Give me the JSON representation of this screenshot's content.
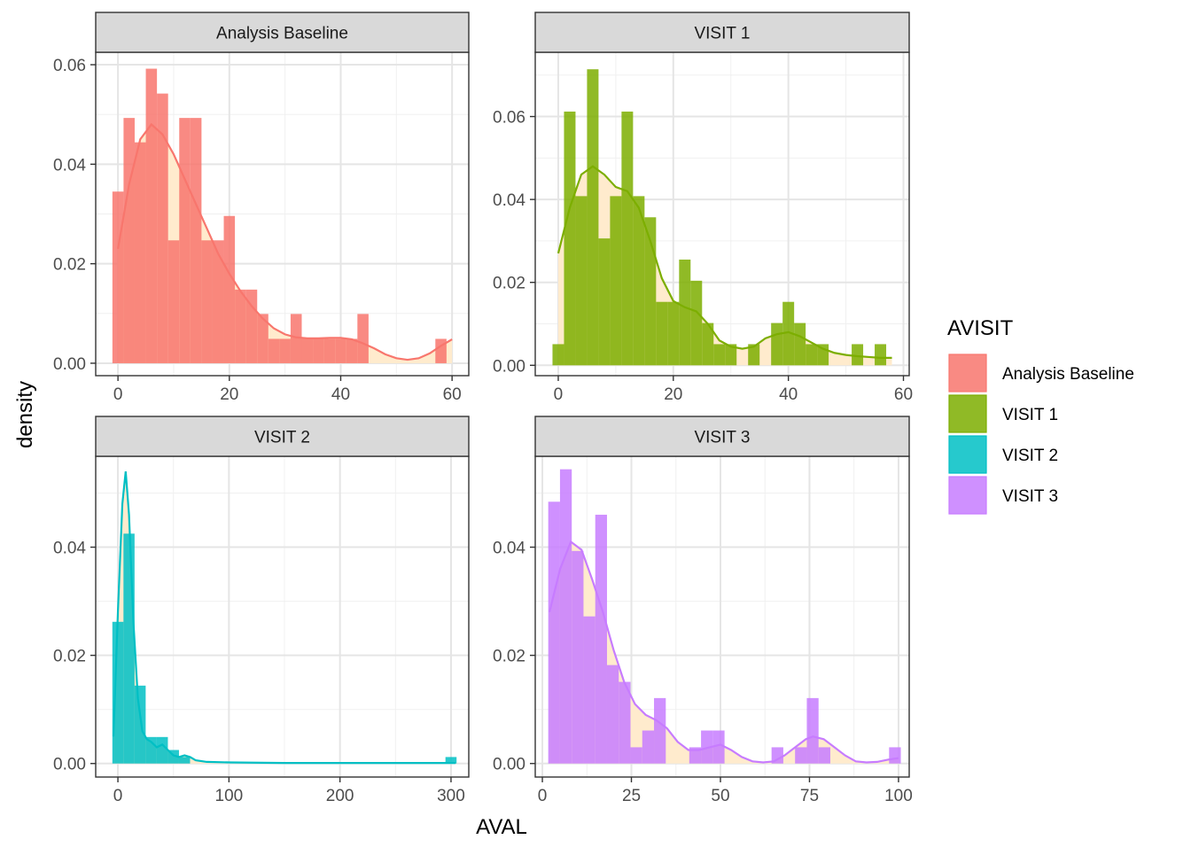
{
  "chart_data": {
    "type": "histogram-density-facets",
    "xlabel": "AVAL",
    "ylabel": "density",
    "legend": {
      "title": "AVISIT",
      "position": "right",
      "entries": [
        {
          "label": "Analysis Baseline",
          "color": "#F8766D"
        },
        {
          "label": "VISIT 1",
          "color": "#7CAE00"
        },
        {
          "label": "VISIT 2",
          "color": "#00BFC4"
        },
        {
          "label": "VISIT 3",
          "color": "#C77CFF"
        }
      ]
    },
    "density_fill": "#FFEBCD",
    "grid": true,
    "panels": [
      {
        "strip": "Analysis Baseline",
        "color": "#F8766D",
        "xlim": [
          -4,
          63
        ],
        "ylim": [
          -0.0025,
          0.0625
        ],
        "x_ticks": [
          0,
          20,
          40,
          60
        ],
        "x_tick_labels": [
          "0",
          "20",
          "40",
          "60"
        ],
        "y_ticks": [
          0,
          0.02,
          0.04,
          0.06
        ],
        "y_tick_labels": [
          "0.00",
          "0.02",
          "0.04",
          "0.06"
        ],
        "bin_width": 2,
        "bins": [
          {
            "x": 0,
            "y": 0.0345
          },
          {
            "x": 2,
            "y": 0.0493
          },
          {
            "x": 4,
            "y": 0.0444
          },
          {
            "x": 6,
            "y": 0.0592
          },
          {
            "x": 8,
            "y": 0.0542
          },
          {
            "x": 10,
            "y": 0.0247
          },
          {
            "x": 12,
            "y": 0.0493
          },
          {
            "x": 14,
            "y": 0.0493
          },
          {
            "x": 16,
            "y": 0.0247
          },
          {
            "x": 18,
            "y": 0.0247
          },
          {
            "x": 20,
            "y": 0.0296
          },
          {
            "x": 22,
            "y": 0.0148
          },
          {
            "x": 24,
            "y": 0.0148
          },
          {
            "x": 26,
            "y": 0.0099
          },
          {
            "x": 28,
            "y": 0.0049
          },
          {
            "x": 30,
            "y": 0.0049
          },
          {
            "x": 32,
            "y": 0.0099
          },
          {
            "x": 34,
            "y": 0.0049
          },
          {
            "x": 36,
            "y": 0.0049
          },
          {
            "x": 38,
            "y": 0.0049
          },
          {
            "x": 40,
            "y": 0.0049
          },
          {
            "x": 42,
            "y": 0.0049
          },
          {
            "x": 44,
            "y": 0.0099
          },
          {
            "x": 58,
            "y": 0.0049
          }
        ],
        "density": [
          [
            0,
            0.023
          ],
          [
            2,
            0.036
          ],
          [
            4,
            0.045
          ],
          [
            6,
            0.048
          ],
          [
            8,
            0.046
          ],
          [
            10,
            0.042
          ],
          [
            12,
            0.037
          ],
          [
            14,
            0.032
          ],
          [
            16,
            0.027
          ],
          [
            18,
            0.022
          ],
          [
            20,
            0.018
          ],
          [
            22,
            0.0145
          ],
          [
            24,
            0.0115
          ],
          [
            26,
            0.009
          ],
          [
            28,
            0.007
          ],
          [
            30,
            0.0058
          ],
          [
            32,
            0.0052
          ],
          [
            34,
            0.005
          ],
          [
            36,
            0.005
          ],
          [
            38,
            0.0051
          ],
          [
            40,
            0.0051
          ],
          [
            42,
            0.0048
          ],
          [
            44,
            0.004
          ],
          [
            46,
            0.003
          ],
          [
            48,
            0.0018
          ],
          [
            50,
            0.001
          ],
          [
            52,
            0.0007
          ],
          [
            54,
            0.001
          ],
          [
            56,
            0.002
          ],
          [
            58,
            0.0035
          ],
          [
            60,
            0.0048
          ]
        ]
      },
      {
        "strip": "VISIT 1",
        "color": "#7CAE00",
        "xlim": [
          -4,
          61
        ],
        "ylim": [
          -0.0025,
          0.0755
        ],
        "x_ticks": [
          0,
          20,
          40,
          60
        ],
        "x_tick_labels": [
          "0",
          "20",
          "40",
          "60"
        ],
        "y_ticks": [
          0,
          0.02,
          0.04,
          0.06
        ],
        "y_tick_labels": [
          "0.00",
          "0.02",
          "0.04",
          "0.06"
        ],
        "bin_width": 2,
        "bins": [
          {
            "x": 0,
            "y": 0.0051
          },
          {
            "x": 2,
            "y": 0.0612
          },
          {
            "x": 4,
            "y": 0.0408
          },
          {
            "x": 6,
            "y": 0.0714
          },
          {
            "x": 8,
            "y": 0.0306
          },
          {
            "x": 10,
            "y": 0.0408
          },
          {
            "x": 12,
            "y": 0.0612
          },
          {
            "x": 14,
            "y": 0.0408
          },
          {
            "x": 16,
            "y": 0.0357
          },
          {
            "x": 18,
            "y": 0.0153
          },
          {
            "x": 20,
            "y": 0.0153
          },
          {
            "x": 22,
            "y": 0.0255
          },
          {
            "x": 24,
            "y": 0.0204
          },
          {
            "x": 26,
            "y": 0.0102
          },
          {
            "x": 28,
            "y": 0.0051
          },
          {
            "x": 30,
            "y": 0.0051
          },
          {
            "x": 34,
            "y": 0.0051
          },
          {
            "x": 38,
            "y": 0.0102
          },
          {
            "x": 40,
            "y": 0.0153
          },
          {
            "x": 42,
            "y": 0.0102
          },
          {
            "x": 44,
            "y": 0.0051
          },
          {
            "x": 46,
            "y": 0.0051
          },
          {
            "x": 52,
            "y": 0.0051
          },
          {
            "x": 56,
            "y": 0.0051
          }
        ],
        "density": [
          [
            0,
            0.027
          ],
          [
            2,
            0.038
          ],
          [
            4,
            0.046
          ],
          [
            6,
            0.048
          ],
          [
            8,
            0.046
          ],
          [
            10,
            0.043
          ],
          [
            12,
            0.042
          ],
          [
            14,
            0.038
          ],
          [
            16,
            0.03
          ],
          [
            18,
            0.021
          ],
          [
            20,
            0.0155
          ],
          [
            22,
            0.014
          ],
          [
            24,
            0.013
          ],
          [
            26,
            0.01
          ],
          [
            28,
            0.006
          ],
          [
            30,
            0.0045
          ],
          [
            32,
            0.004
          ],
          [
            34,
            0.0045
          ],
          [
            36,
            0.0065
          ],
          [
            38,
            0.0075
          ],
          [
            40,
            0.008
          ],
          [
            42,
            0.007
          ],
          [
            44,
            0.0055
          ],
          [
            46,
            0.004
          ],
          [
            48,
            0.003
          ],
          [
            50,
            0.0025
          ],
          [
            52,
            0.0022
          ],
          [
            54,
            0.002
          ],
          [
            56,
            0.0018
          ],
          [
            58,
            0.0018
          ]
        ]
      },
      {
        "strip": "VISIT 2",
        "color": "#00BFC4",
        "xlim": [
          -20,
          316
        ],
        "ylim": [
          -0.0025,
          0.0568
        ],
        "x_ticks": [
          0,
          100,
          200,
          300
        ],
        "x_tick_labels": [
          "0",
          "100",
          "200",
          "300"
        ],
        "y_ticks": [
          0,
          0.02,
          0.04
        ],
        "y_tick_labels": [
          "0.00",
          "0.02",
          "0.04"
        ],
        "bin_width": 10,
        "bins": [
          {
            "x": 0,
            "y": 0.0262
          },
          {
            "x": 10,
            "y": 0.0425
          },
          {
            "x": 20,
            "y": 0.0144
          },
          {
            "x": 30,
            "y": 0.0049
          },
          {
            "x": 40,
            "y": 0.0049
          },
          {
            "x": 50,
            "y": 0.0025
          },
          {
            "x": 60,
            "y": 0.0012
          },
          {
            "x": 300,
            "y": 0.0012
          }
        ],
        "density": [
          [
            -4,
            0.005
          ],
          [
            0,
            0.028
          ],
          [
            4,
            0.048
          ],
          [
            7,
            0.054
          ],
          [
            10,
            0.046
          ],
          [
            14,
            0.026
          ],
          [
            18,
            0.012
          ],
          [
            22,
            0.006
          ],
          [
            26,
            0.0045
          ],
          [
            30,
            0.004
          ],
          [
            35,
            0.003
          ],
          [
            40,
            0.0035
          ],
          [
            45,
            0.0025
          ],
          [
            50,
            0.0015
          ],
          [
            55,
            0.0012
          ],
          [
            60,
            0.0015
          ],
          [
            65,
            0.0012
          ],
          [
            70,
            0.0006
          ],
          [
            80,
            0.0003
          ],
          [
            100,
            0.0002
          ],
          [
            150,
            0.0001
          ],
          [
            200,
            0.0001
          ],
          [
            250,
            0.0001
          ],
          [
            290,
            0.0001
          ],
          [
            304,
            0.0001
          ]
        ]
      },
      {
        "strip": "VISIT 3",
        "color": "#C77CFF",
        "xlim": [
          -2,
          103
        ],
        "ylim": [
          -0.0025,
          0.0568
        ],
        "x_ticks": [
          0,
          25,
          50,
          75,
          100
        ],
        "x_tick_labels": [
          "0",
          "25",
          "50",
          "75",
          "100"
        ],
        "y_ticks": [
          0,
          0.02,
          0.04
        ],
        "y_tick_labels": [
          "0.00",
          "0.02",
          "0.04"
        ],
        "bin_width": 3.3,
        "bins": [
          {
            "x": 3.3,
            "y": 0.0484
          },
          {
            "x": 6.6,
            "y": 0.0544
          },
          {
            "x": 9.9,
            "y": 0.0393
          },
          {
            "x": 13.2,
            "y": 0.0272
          },
          {
            "x": 16.5,
            "y": 0.046
          },
          {
            "x": 19.8,
            "y": 0.0182
          },
          {
            "x": 23.1,
            "y": 0.0151
          },
          {
            "x": 26.4,
            "y": 0.003
          },
          {
            "x": 29.7,
            "y": 0.0061
          },
          {
            "x": 33.0,
            "y": 0.0121
          },
          {
            "x": 42.9,
            "y": 0.003
          },
          {
            "x": 46.2,
            "y": 0.0061
          },
          {
            "x": 49.5,
            "y": 0.0061
          },
          {
            "x": 66.0,
            "y": 0.003
          },
          {
            "x": 72.6,
            "y": 0.003
          },
          {
            "x": 75.9,
            "y": 0.0121
          },
          {
            "x": 79.2,
            "y": 0.003
          },
          {
            "x": 99.0,
            "y": 0.003
          }
        ],
        "density": [
          [
            2,
            0.028
          ],
          [
            5,
            0.036
          ],
          [
            8,
            0.041
          ],
          [
            11,
            0.0395
          ],
          [
            14,
            0.034
          ],
          [
            17,
            0.028
          ],
          [
            20,
            0.021
          ],
          [
            23,
            0.015
          ],
          [
            26,
            0.011
          ],
          [
            29,
            0.009
          ],
          [
            32,
            0.008
          ],
          [
            35,
            0.0065
          ],
          [
            38,
            0.004
          ],
          [
            41,
            0.0025
          ],
          [
            44,
            0.0025
          ],
          [
            47,
            0.003
          ],
          [
            50,
            0.0035
          ],
          [
            53,
            0.0025
          ],
          [
            56,
            0.0012
          ],
          [
            59,
            0.0004
          ],
          [
            62,
            0.0002
          ],
          [
            65,
            0.0004
          ],
          [
            68,
            0.0015
          ],
          [
            71,
            0.003
          ],
          [
            74,
            0.0045
          ],
          [
            76,
            0.005
          ],
          [
            79,
            0.0045
          ],
          [
            82,
            0.003
          ],
          [
            85,
            0.0015
          ],
          [
            88,
            0.0004
          ],
          [
            91,
            0.0002
          ],
          [
            94,
            0.0003
          ],
          [
            97,
            0.0007
          ],
          [
            100,
            0.001
          ]
        ]
      }
    ]
  }
}
